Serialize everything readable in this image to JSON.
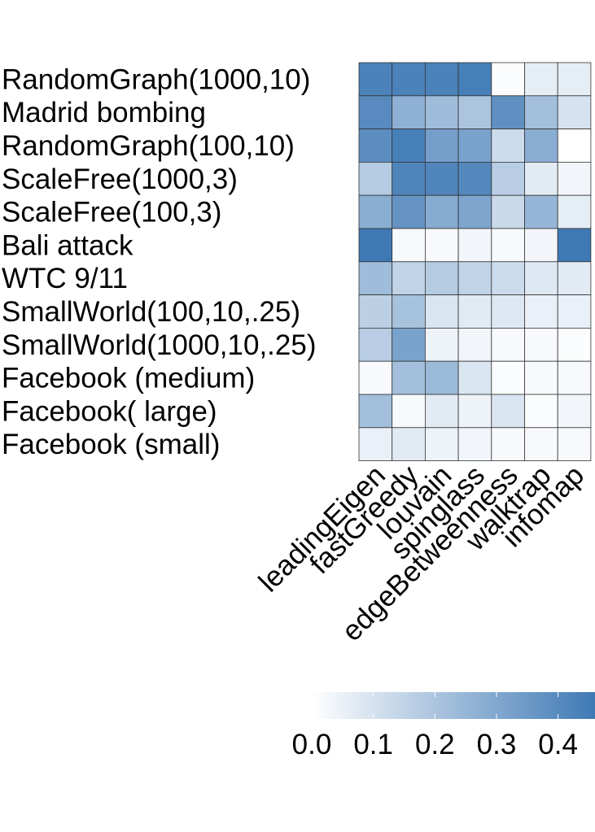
{
  "chart_data": {
    "type": "heatmap",
    "title": "",
    "xlabel": "",
    "ylabel": "",
    "columns": [
      "leadingEigen",
      "fastGreedy",
      "louvain",
      "spinglass",
      "edgeBetweenness",
      "walktrap",
      "infomap"
    ],
    "rows": [
      "RandomGraph(1000,10)",
      "Madrid bombing",
      "RandomGraph(100,10)",
      "ScaleFree(1000,3)",
      "ScaleFree(100,3)",
      "Bali attack",
      "WTC 9/11",
      "SmallWorld(100,10,.25)",
      "SmallWorld(1000,10,.25)",
      "Facebook (medium)",
      "Facebook( large)",
      "Facebook (small)"
    ],
    "values": [
      [
        0.43,
        0.43,
        0.43,
        0.44,
        0.01,
        0.06,
        0.06
      ],
      [
        0.4,
        0.27,
        0.23,
        0.2,
        0.38,
        0.22,
        0.1
      ],
      [
        0.39,
        0.44,
        0.33,
        0.32,
        0.12,
        0.28,
        0.0
      ],
      [
        0.18,
        0.42,
        0.42,
        0.41,
        0.17,
        0.07,
        0.03
      ],
      [
        0.28,
        0.37,
        0.29,
        0.31,
        0.13,
        0.25,
        0.06
      ],
      [
        0.52,
        0.02,
        0.02,
        0.03,
        0.02,
        0.03,
        0.47
      ],
      [
        0.23,
        0.15,
        0.18,
        0.15,
        0.12,
        0.08,
        0.07
      ],
      [
        0.16,
        0.21,
        0.09,
        0.07,
        0.08,
        0.05,
        0.05
      ],
      [
        0.17,
        0.32,
        0.04,
        0.03,
        0.02,
        0.02,
        0.01
      ],
      [
        0.02,
        0.22,
        0.24,
        0.09,
        0.01,
        0.02,
        0.02
      ],
      [
        0.22,
        0.02,
        0.07,
        0.04,
        0.09,
        0.01,
        0.03
      ],
      [
        0.05,
        0.07,
        0.04,
        0.03,
        0.02,
        0.02,
        0.02
      ]
    ],
    "color_range": [
      0.0,
      0.46
    ],
    "colors": {
      "low": "#ffffff",
      "high": "#3f79b5",
      "grid": "#333333"
    },
    "legend": {
      "ticks": [
        "0.0",
        "0.1",
        "0.2",
        "0.3",
        "0.4"
      ],
      "tick_values": [
        0.0,
        0.1,
        0.2,
        0.3,
        0.4
      ],
      "placement": "bottom"
    }
  }
}
